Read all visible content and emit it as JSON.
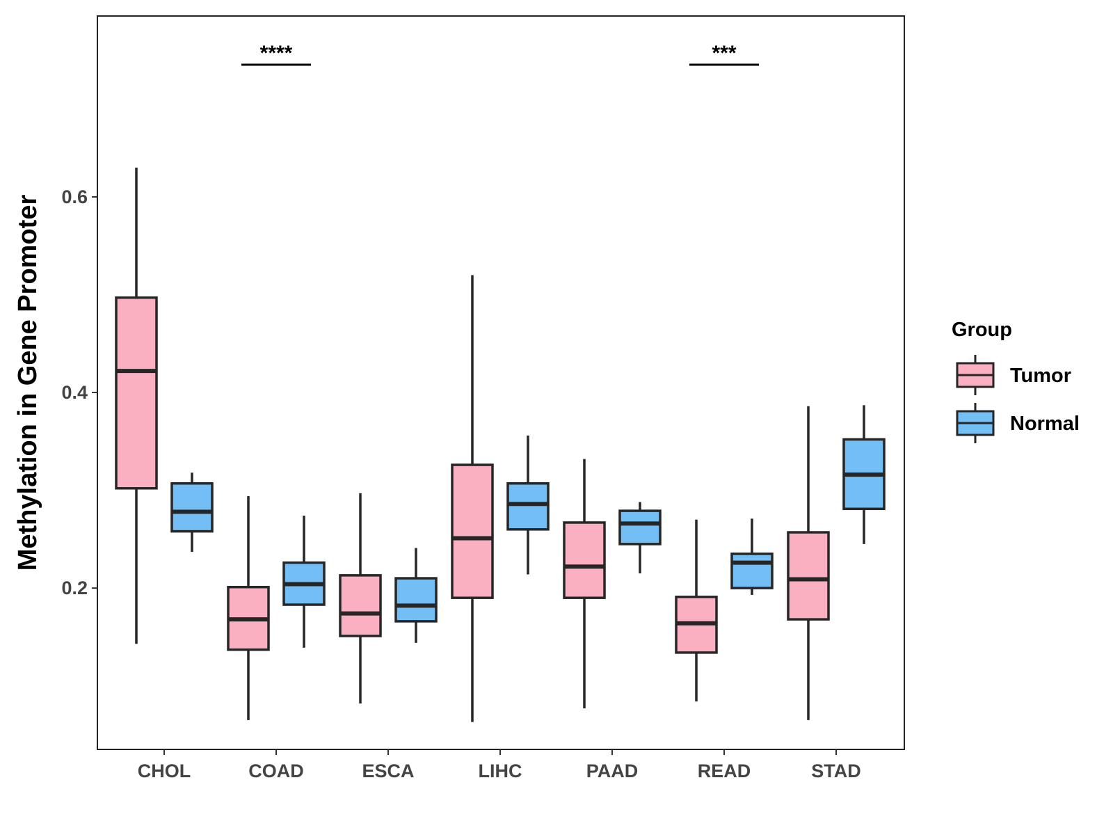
{
  "chart_data": {
    "type": "box",
    "title": "",
    "xlabel": "",
    "ylabel": "Methylation in Gene Promoter",
    "ylim": [
      0.035,
      0.785
    ],
    "yticks": [
      0.2,
      0.4,
      0.6
    ],
    "ytick_labels": [
      "0.2",
      "0.4",
      "0.6"
    ],
    "categories": [
      "CHOL",
      "COAD",
      "ESCA",
      "LIHC",
      "PAAD",
      "READ",
      "STAD"
    ],
    "legend": {
      "title": "Group",
      "position": "right",
      "entries": [
        {
          "name": "Tumor",
          "color": "#FBB0C2"
        },
        {
          "name": "Normal",
          "color": "#74BEF6"
        }
      ]
    },
    "series": [
      {
        "name": "Tumor",
        "color": "#FBB0C2",
        "boxes": [
          {
            "category": "CHOL",
            "min": 0.143,
            "q1": 0.302,
            "median": 0.422,
            "q3": 0.497,
            "max": 0.63
          },
          {
            "category": "COAD",
            "min": 0.065,
            "q1": 0.137,
            "median": 0.168,
            "q3": 0.201,
            "max": 0.294
          },
          {
            "category": "ESCA",
            "min": 0.082,
            "q1": 0.151,
            "median": 0.174,
            "q3": 0.213,
            "max": 0.297
          },
          {
            "category": "LIHC",
            "min": 0.063,
            "q1": 0.19,
            "median": 0.251,
            "q3": 0.326,
            "max": 0.52
          },
          {
            "category": "PAAD",
            "min": 0.077,
            "q1": 0.19,
            "median": 0.222,
            "q3": 0.267,
            "max": 0.332
          },
          {
            "category": "READ",
            "min": 0.084,
            "q1": 0.134,
            "median": 0.164,
            "q3": 0.191,
            "max": 0.27
          },
          {
            "category": "STAD",
            "min": 0.065,
            "q1": 0.168,
            "median": 0.209,
            "q3": 0.257,
            "max": 0.386
          }
        ]
      },
      {
        "name": "Normal",
        "color": "#74BEF6",
        "boxes": [
          {
            "category": "CHOL",
            "min": 0.237,
            "q1": 0.258,
            "median": 0.278,
            "q3": 0.307,
            "max": 0.318
          },
          {
            "category": "COAD",
            "min": 0.139,
            "q1": 0.183,
            "median": 0.204,
            "q3": 0.226,
            "max": 0.274
          },
          {
            "category": "ESCA",
            "min": 0.144,
            "q1": 0.166,
            "median": 0.182,
            "q3": 0.21,
            "max": 0.241
          },
          {
            "category": "LIHC",
            "min": 0.214,
            "q1": 0.26,
            "median": 0.286,
            "q3": 0.307,
            "max": 0.356
          },
          {
            "category": "PAAD",
            "min": 0.215,
            "q1": 0.245,
            "median": 0.266,
            "q3": 0.279,
            "max": 0.288
          },
          {
            "category": "READ",
            "min": 0.193,
            "q1": 0.2,
            "median": 0.226,
            "q3": 0.235,
            "max": 0.271
          },
          {
            "category": "STAD",
            "min": 0.245,
            "q1": 0.281,
            "median": 0.316,
            "q3": 0.352,
            "max": 0.387
          }
        ]
      }
    ],
    "annotations": [
      {
        "category": "COAD",
        "text": "****"
      },
      {
        "category": "READ",
        "text": "***"
      }
    ],
    "grid": false
  }
}
